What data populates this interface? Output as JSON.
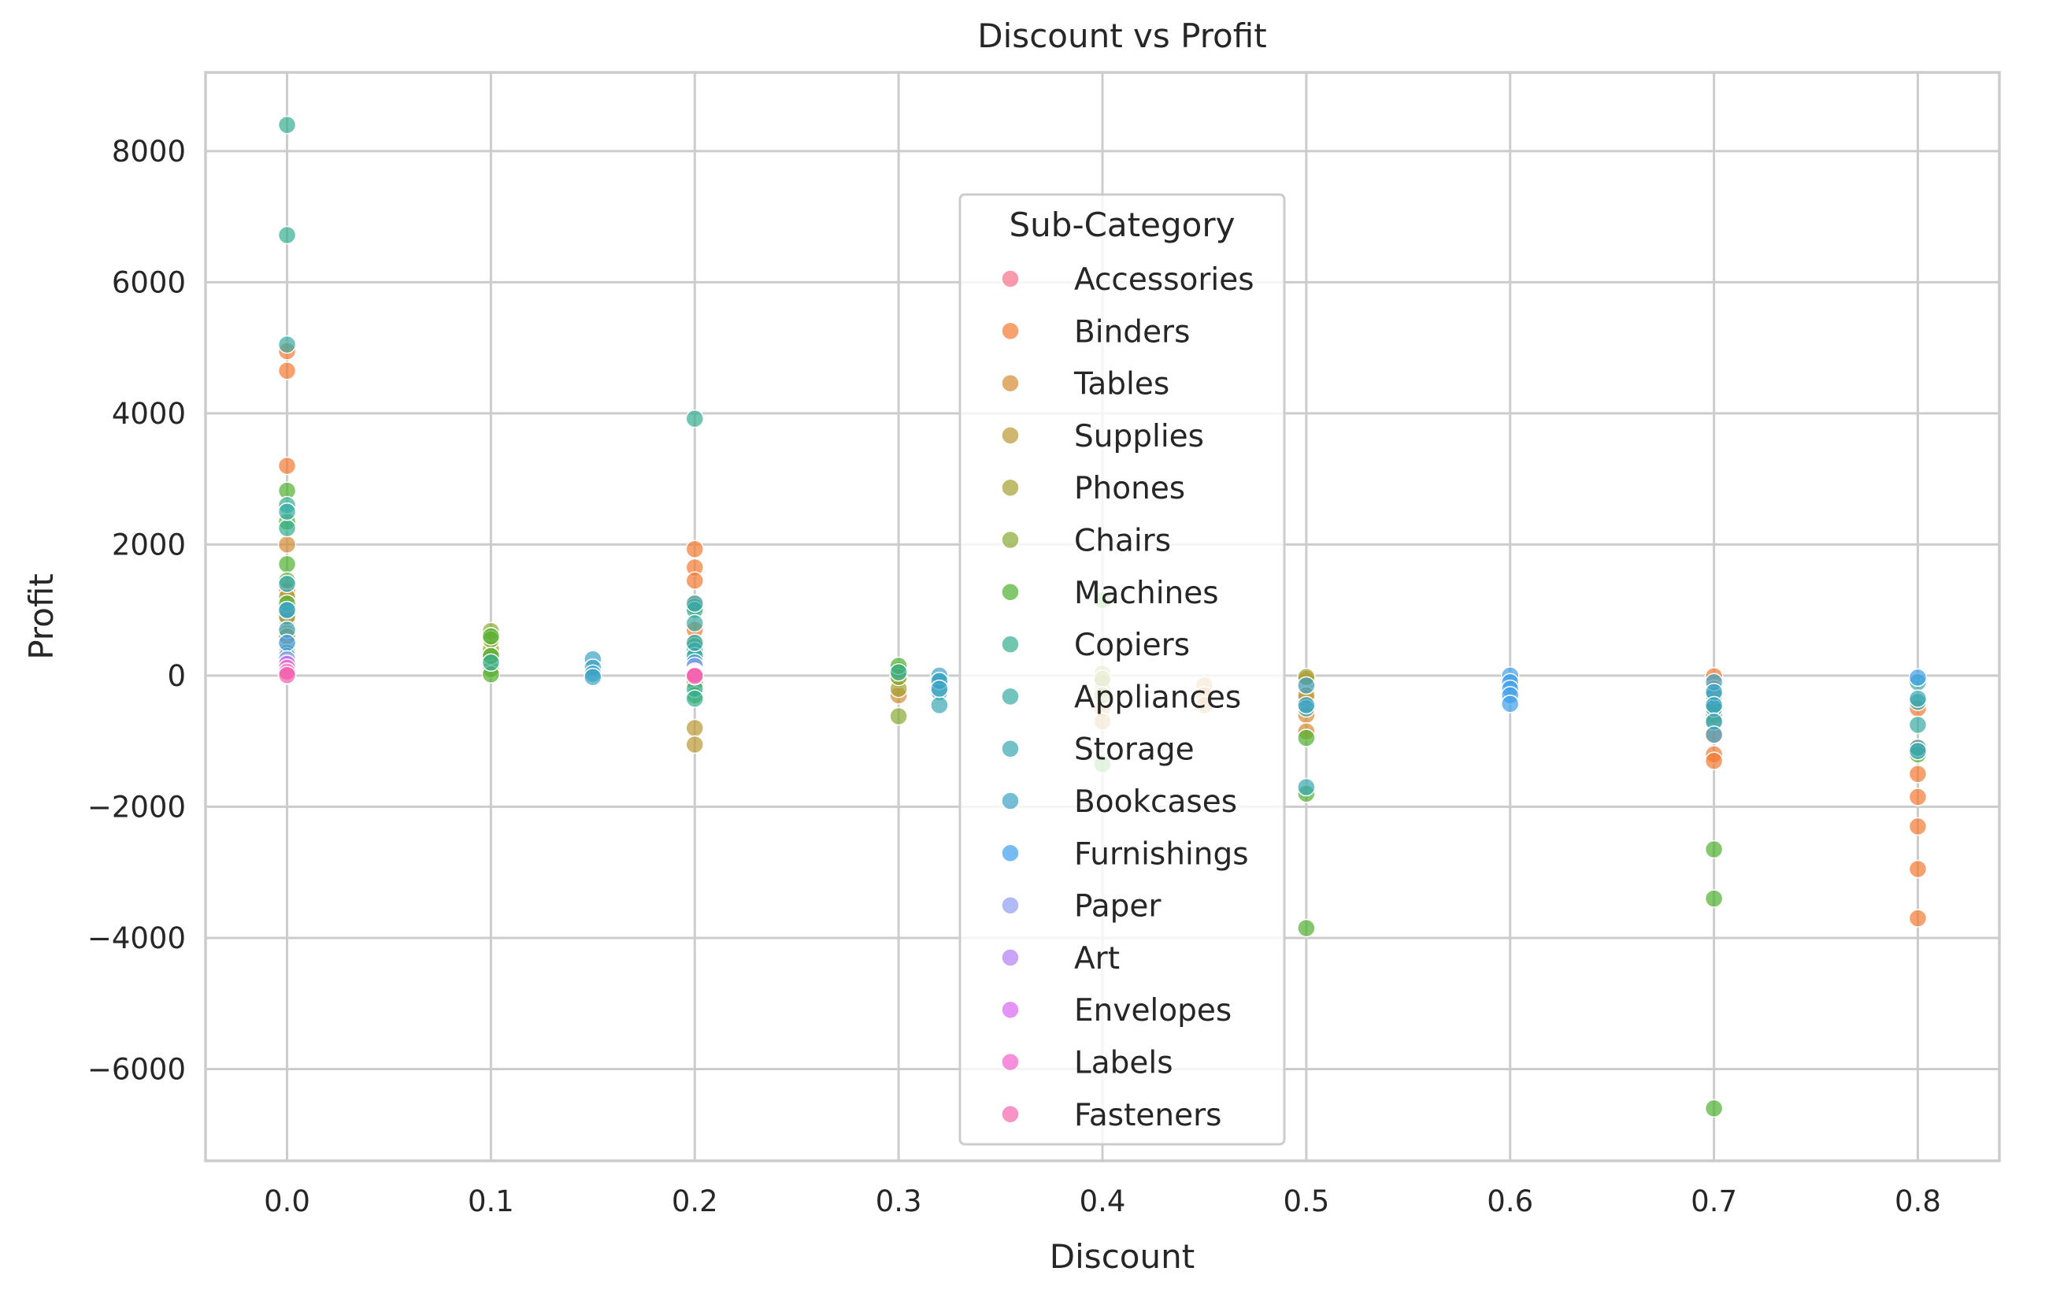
{
  "chart_data": {
    "type": "scatter",
    "title": "Discount vs Profit",
    "xlabel": "Discount",
    "ylabel": "Profit",
    "xlim": [
      -0.04,
      0.84
    ],
    "ylim": [
      -7400,
      9200
    ],
    "xticks": [
      0.0,
      0.1,
      0.2,
      0.3,
      0.4,
      0.5,
      0.6,
      0.7,
      0.8
    ],
    "xtick_labels": [
      "0.0",
      "0.1",
      "0.2",
      "0.3",
      "0.4",
      "0.5",
      "0.6",
      "0.7",
      "0.8"
    ],
    "yticks": [
      -6000,
      -4000,
      -2000,
      0,
      2000,
      4000,
      6000,
      8000
    ],
    "ytick_labels": [
      "−6000",
      "−4000",
      "−2000",
      "0",
      "2000",
      "4000",
      "6000",
      "8000"
    ],
    "grid": true,
    "legend": {
      "title": "Sub-Category",
      "placement": "center"
    },
    "series": [
      {
        "name": "Accessories",
        "color": "#f77189",
        "points": [
          [
            0.0,
            850
          ],
          [
            0.0,
            650
          ],
          [
            0.0,
            500
          ],
          [
            0.0,
            300
          ],
          [
            0.0,
            150
          ],
          [
            0.2,
            200
          ],
          [
            0.2,
            50
          ],
          [
            0.2,
            -20
          ]
        ]
      },
      {
        "name": "Binders",
        "color": "#f37932",
        "points": [
          [
            0.0,
            4950
          ],
          [
            0.0,
            4650
          ],
          [
            0.0,
            3200
          ],
          [
            0.0,
            1300
          ],
          [
            0.2,
            1930
          ],
          [
            0.2,
            1650
          ],
          [
            0.2,
            1450
          ],
          [
            0.2,
            1100
          ],
          [
            0.2,
            700
          ],
          [
            0.2,
            0
          ],
          [
            0.7,
            -10
          ],
          [
            0.7,
            -200
          ],
          [
            0.7,
            -400
          ],
          [
            0.7,
            -900
          ],
          [
            0.7,
            -1200
          ],
          [
            0.7,
            -1300
          ],
          [
            0.8,
            -500
          ],
          [
            0.8,
            -1100
          ],
          [
            0.8,
            -1500
          ],
          [
            0.8,
            -1850
          ],
          [
            0.8,
            -2300
          ],
          [
            0.8,
            -2950
          ],
          [
            0.8,
            -3700
          ]
        ]
      },
      {
        "name": "Tables",
        "color": "#d58c32",
        "points": [
          [
            0.0,
            2000
          ],
          [
            0.0,
            400
          ],
          [
            0.2,
            300
          ],
          [
            0.3,
            -50
          ],
          [
            0.3,
            -300
          ],
          [
            0.4,
            -200
          ],
          [
            0.4,
            -500
          ],
          [
            0.4,
            -700
          ],
          [
            0.45,
            -150
          ],
          [
            0.45,
            -300
          ],
          [
            0.45,
            -450
          ],
          [
            0.5,
            -100
          ],
          [
            0.5,
            -350
          ],
          [
            0.5,
            -600
          ],
          [
            0.5,
            -850
          ]
        ]
      },
      {
        "name": "Supplies",
        "color": "#bb9832",
        "points": [
          [
            0.0,
            350
          ],
          [
            0.0,
            100
          ],
          [
            0.2,
            30
          ],
          [
            0.2,
            -100
          ],
          [
            0.2,
            -800
          ],
          [
            0.2,
            -1050
          ],
          [
            0.5,
            -50
          ],
          [
            0.5,
            -300
          ]
        ]
      },
      {
        "name": "Phones",
        "color": "#a4a031",
        "points": [
          [
            0.0,
            1200
          ],
          [
            0.0,
            600
          ],
          [
            0.1,
            400
          ],
          [
            0.1,
            250
          ],
          [
            0.2,
            500
          ],
          [
            0.2,
            150
          ],
          [
            0.3,
            100
          ],
          [
            0.3,
            -50
          ],
          [
            0.3,
            -200
          ],
          [
            0.4,
            30
          ],
          [
            0.4,
            -100
          ],
          [
            0.5,
            -20
          ]
        ]
      },
      {
        "name": "Chairs",
        "color": "#88a931",
        "points": [
          [
            0.0,
            900
          ],
          [
            0.0,
            350
          ],
          [
            0.1,
            680
          ],
          [
            0.1,
            550
          ],
          [
            0.1,
            300
          ],
          [
            0.1,
            100
          ],
          [
            0.2,
            250
          ],
          [
            0.2,
            50
          ],
          [
            0.2,
            -100
          ],
          [
            0.3,
            80
          ],
          [
            0.3,
            -20
          ],
          [
            0.3,
            -620
          ],
          [
            0.4,
            -50
          ],
          [
            0.4,
            -300
          ],
          [
            0.7,
            -400
          ],
          [
            0.7,
            -600
          ]
        ]
      },
      {
        "name": "Machines",
        "color": "#50b131",
        "points": [
          [
            0.0,
            2820
          ],
          [
            0.0,
            2350
          ],
          [
            0.0,
            1700
          ],
          [
            0.0,
            1450
          ],
          [
            0.0,
            1100
          ],
          [
            0.1,
            600
          ],
          [
            0.1,
            300
          ],
          [
            0.1,
            20
          ],
          [
            0.2,
            1050
          ],
          [
            0.2,
            450
          ],
          [
            0.2,
            -300
          ],
          [
            0.3,
            150
          ],
          [
            0.4,
            1150
          ],
          [
            0.4,
            -1350
          ],
          [
            0.5,
            -950
          ],
          [
            0.5,
            -1800
          ],
          [
            0.5,
            -3850
          ],
          [
            0.7,
            -500
          ],
          [
            0.7,
            -700
          ],
          [
            0.7,
            -2650
          ],
          [
            0.7,
            -3400
          ],
          [
            0.7,
            -6600
          ],
          [
            0.8,
            -1200
          ]
        ]
      },
      {
        "name": "Copiers",
        "color": "#34ae91",
        "points": [
          [
            0.0,
            8400
          ],
          [
            0.0,
            6720
          ],
          [
            0.0,
            2600
          ],
          [
            0.0,
            2250
          ],
          [
            0.2,
            3920
          ],
          [
            0.2,
            1000
          ],
          [
            0.2,
            380
          ],
          [
            0.2,
            -200
          ],
          [
            0.2,
            -350
          ],
          [
            0.1,
            200
          ],
          [
            0.3,
            50
          ]
        ]
      },
      {
        "name": "Appliances",
        "color": "#37aba4",
        "points": [
          [
            0.0,
            5050
          ],
          [
            0.0,
            2500
          ],
          [
            0.0,
            1000
          ],
          [
            0.2,
            800
          ],
          [
            0.2,
            300
          ],
          [
            0.8,
            -100
          ],
          [
            0.8,
            -400
          ],
          [
            0.8,
            -750
          ],
          [
            0.8,
            -1100
          ]
        ]
      },
      {
        "name": "Storage",
        "color": "#39a7b3",
        "points": [
          [
            0.0,
            1400
          ],
          [
            0.0,
            700
          ],
          [
            0.0,
            200
          ],
          [
            0.2,
            1100
          ],
          [
            0.2,
            500
          ],
          [
            0.2,
            0
          ],
          [
            0.32,
            -100
          ],
          [
            0.32,
            -250
          ],
          [
            0.32,
            -450
          ],
          [
            0.5,
            -500
          ],
          [
            0.5,
            -1700
          ],
          [
            0.7,
            -300
          ],
          [
            0.7,
            -500
          ],
          [
            0.8,
            -350
          ],
          [
            0.8,
            -1150
          ]
        ]
      },
      {
        "name": "Bookcases",
        "color": "#3ba3c4",
        "points": [
          [
            0.0,
            1000
          ],
          [
            0.0,
            300
          ],
          [
            0.15,
            250
          ],
          [
            0.15,
            120
          ],
          [
            0.15,
            30
          ],
          [
            0.15,
            -20
          ],
          [
            0.32,
            0
          ],
          [
            0.32,
            -80
          ],
          [
            0.32,
            -200
          ],
          [
            0.5,
            -150
          ],
          [
            0.5,
            -450
          ],
          [
            0.7,
            -100
          ],
          [
            0.7,
            -250
          ],
          [
            0.7,
            -450
          ],
          [
            0.7,
            -700
          ],
          [
            0.7,
            -900
          ]
        ]
      },
      {
        "name": "Furnishings",
        "color": "#3e9ee9",
        "points": [
          [
            0.0,
            500
          ],
          [
            0.0,
            200
          ],
          [
            0.2,
            200
          ],
          [
            0.2,
            20
          ],
          [
            0.6,
            0
          ],
          [
            0.6,
            -100
          ],
          [
            0.6,
            -200
          ],
          [
            0.6,
            -300
          ],
          [
            0.6,
            -430
          ],
          [
            0.8,
            -30
          ]
        ]
      },
      {
        "name": "Paper",
        "color": "#8e9cf4",
        "points": [
          [
            0.0,
            250
          ],
          [
            0.0,
            80
          ],
          [
            0.0,
            20
          ],
          [
            0.2,
            150
          ],
          [
            0.2,
            40
          ],
          [
            0.2,
            0
          ]
        ]
      },
      {
        "name": "Art",
        "color": "#b27ef3",
        "points": [
          [
            0.0,
            100
          ],
          [
            0.0,
            30
          ],
          [
            0.0,
            0
          ],
          [
            0.2,
            60
          ],
          [
            0.2,
            10
          ],
          [
            0.2,
            -10
          ]
        ]
      },
      {
        "name": "Envelopes",
        "color": "#d866f3",
        "points": [
          [
            0.0,
            180
          ],
          [
            0.0,
            60
          ],
          [
            0.2,
            40
          ],
          [
            0.2,
            5
          ]
        ]
      },
      {
        "name": "Labels",
        "color": "#f35fcf",
        "points": [
          [
            0.0,
            120
          ],
          [
            0.0,
            40
          ],
          [
            0.2,
            20
          ]
        ]
      },
      {
        "name": "Fasteners",
        "color": "#f565ac",
        "points": [
          [
            0.0,
            60
          ],
          [
            0.0,
            10
          ],
          [
            0.2,
            10
          ],
          [
            0.2,
            -5
          ]
        ]
      }
    ]
  }
}
